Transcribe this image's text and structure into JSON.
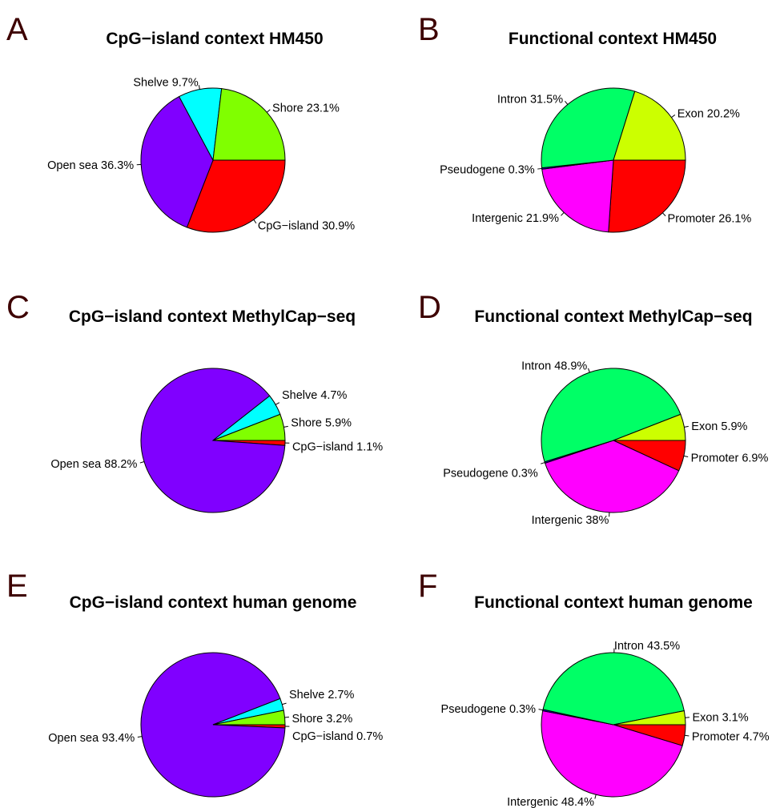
{
  "chart_data": [
    {
      "type": "pie",
      "panel": "A",
      "title": "CpG−island context HM450",
      "slices": [
        {
          "label": "CpG−island",
          "value": 30.9,
          "color": "#ff0000"
        },
        {
          "label": "Open sea",
          "value": 36.3,
          "color": "#8000ff"
        },
        {
          "label": "Shelve",
          "value": 9.7,
          "color": "#00ffff"
        },
        {
          "label": "Shore",
          "value": 23.1,
          "color": "#80ff00"
        }
      ],
      "labels": [
        "CpG−island 30.9%",
        "Open sea 36.3%",
        "Shelve 9.7%",
        "Shore 23.1%"
      ]
    },
    {
      "type": "pie",
      "panel": "B",
      "title": "Functional context HM450",
      "slices": [
        {
          "label": "Promoter",
          "value": 26.1,
          "color": "#ff0000"
        },
        {
          "label": "Intergenic",
          "value": 21.9,
          "color": "#ff00ff"
        },
        {
          "label": "Pseudogene",
          "value": 0.3,
          "color": "#0000ff"
        },
        {
          "label": "Intron",
          "value": 31.5,
          "color": "#00ff66"
        },
        {
          "label": "Exon",
          "value": 20.2,
          "color": "#ccff00"
        }
      ],
      "labels": [
        "Promoter 26.1%",
        "Intergenic 21.9%",
        "Pseudogene 0.3%",
        "Intron 31.5%",
        "Exon 20.2%"
      ]
    },
    {
      "type": "pie",
      "panel": "C",
      "title": "CpG−island context MethylCap−seq",
      "slices": [
        {
          "label": "CpG−island",
          "value": 1.1,
          "color": "#ff0000"
        },
        {
          "label": "Open sea",
          "value": 88.2,
          "color": "#8000ff"
        },
        {
          "label": "Shelve",
          "value": 4.7,
          "color": "#00ffff"
        },
        {
          "label": "Shore",
          "value": 5.9,
          "color": "#80ff00"
        }
      ],
      "labels": [
        "CpG−island 1.1%",
        "Open sea 88.2%",
        "Shelve 4.7%",
        "Shore 5.9%"
      ]
    },
    {
      "type": "pie",
      "panel": "D",
      "title": "Functional context MethylCap−seq",
      "slices": [
        {
          "label": "Promoter",
          "value": 6.9,
          "color": "#ff0000"
        },
        {
          "label": "Intergenic",
          "value": 38,
          "color": "#ff00ff"
        },
        {
          "label": "Pseudogene",
          "value": 0.3,
          "color": "#0000ff"
        },
        {
          "label": "Intron",
          "value": 48.9,
          "color": "#00ff66"
        },
        {
          "label": "Exon",
          "value": 5.9,
          "color": "#ccff00"
        }
      ],
      "labels": [
        "Promoter 6.9%",
        "Intergenic 38%",
        "Pseudogene 0.3%",
        "Intron 48.9%",
        "Exon 5.9%"
      ]
    },
    {
      "type": "pie",
      "panel": "E",
      "title": "CpG−island context human genome",
      "slices": [
        {
          "label": "CpG−island",
          "value": 0.7,
          "color": "#ff0000"
        },
        {
          "label": "Open sea",
          "value": 93.4,
          "color": "#8000ff"
        },
        {
          "label": "Shelve",
          "value": 2.7,
          "color": "#00ffff"
        },
        {
          "label": "Shore",
          "value": 3.2,
          "color": "#80ff00"
        }
      ],
      "labels": [
        "CpG−island 0.7%",
        "Open sea 93.4%",
        "Shelve 2.7%",
        "Shore 3.2%"
      ]
    },
    {
      "type": "pie",
      "panel": "F",
      "title": "Functional context human genome",
      "slices": [
        {
          "label": "Promoter",
          "value": 4.7,
          "color": "#ff0000"
        },
        {
          "label": "Intergenic",
          "value": 48.4,
          "color": "#ff00ff"
        },
        {
          "label": "Pseudogene",
          "value": 0.3,
          "color": "#0000ff"
        },
        {
          "label": "Intron",
          "value": 43.5,
          "color": "#00ff66"
        },
        {
          "label": "Exon",
          "value": 3.1,
          "color": "#ccff00"
        }
      ],
      "labels": [
        "Promoter 4.7%",
        "Intergenic 48.4%",
        "Pseudogene 0.3%",
        "Intron 43.5%",
        "Exon 3.1%"
      ]
    }
  ]
}
